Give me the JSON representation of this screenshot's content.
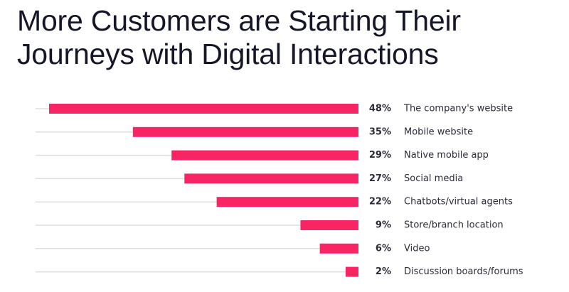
{
  "chart_data": {
    "type": "bar",
    "orientation": "horizontal",
    "title": "More Customers are Starting Their Journeys with Digital Interactions",
    "categories": [
      "The company's website",
      "Mobile website",
      "Native mobile app",
      "Social media",
      "Chatbots/virtual agents",
      "Store/branch location",
      "Video",
      "Discussion boards/forums"
    ],
    "values": [
      48,
      35,
      29,
      27,
      22,
      9,
      6,
      2
    ],
    "value_labels": [
      "48%",
      "35%",
      "29%",
      "27%",
      "22%",
      "9%",
      "6%",
      "2%"
    ],
    "color": "#f72563"
  }
}
